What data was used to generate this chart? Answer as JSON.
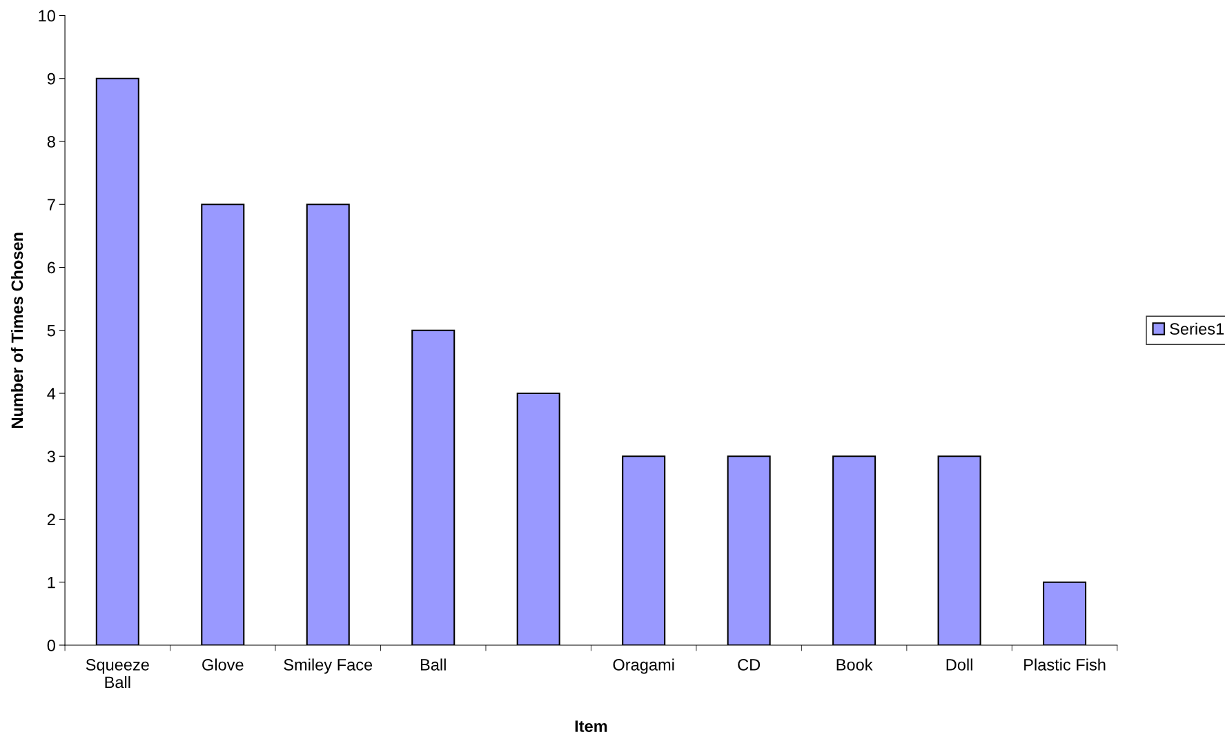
{
  "chart_data": {
    "type": "bar",
    "xlabel": "Item",
    "ylabel": "Number of Times Chosen",
    "categories": [
      "Squeeze\nBall",
      "Glove",
      "Smiley Face",
      "Ball",
      null,
      "Oragami",
      "CD",
      "Book",
      "Doll",
      "Plastic Fish"
    ],
    "series": [
      {
        "name": "Series1",
        "color": "#9999ff",
        "values": [
          9,
          7,
          7,
          5,
          4,
          3,
          3,
          3,
          3,
          1
        ]
      }
    ],
    "ylim": [
      0,
      10
    ],
    "yticks": [
      0,
      1,
      2,
      3,
      4,
      5,
      6,
      7,
      8,
      9,
      10
    ],
    "grid": false,
    "legend": "right"
  }
}
